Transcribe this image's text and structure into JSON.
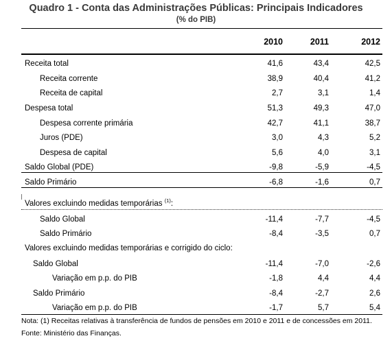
{
  "title": "Quadro 1 - Conta das Administrações Públicas: Principais Indicadores",
  "subtitle": "(% do PIB)",
  "columns": [
    "2010",
    "2011",
    "2012"
  ],
  "rows": [
    {
      "label": "Receita total",
      "values": [
        "41,6",
        "43,4",
        "42,5"
      ]
    },
    {
      "label": "Receita corrente",
      "values": [
        "38,9",
        "40,4",
        "41,2"
      ]
    },
    {
      "label": "Receita de capital",
      "values": [
        "2,7",
        "3,1",
        "1,4"
      ]
    },
    {
      "label": "Despesa total",
      "values": [
        "51,3",
        "49,3",
        "47,0"
      ]
    },
    {
      "label": "Despesa corrente primária",
      "values": [
        "42,7",
        "41,1",
        "38,7"
      ]
    },
    {
      "label": "Juros (PDE)",
      "values": [
        "3,0",
        "4,3",
        "5,2"
      ]
    },
    {
      "label": "Despesa de capital",
      "values": [
        "5,6",
        "4,0",
        "3,1"
      ]
    },
    {
      "label": "Saldo Global (PDE)",
      "values": [
        "-9,8",
        "-5,9",
        "-4,5"
      ]
    },
    {
      "label": "Saldo Primário",
      "values": [
        "-6,8",
        "-1,6",
        "0,7"
      ]
    },
    {
      "label": "Valores excluindo medidas temporárias",
      "sup": "(1)",
      "suffix": ":",
      "values": []
    },
    {
      "label": "Saldo Global",
      "values": [
        "-11,4",
        "-7,7",
        "-4,5"
      ]
    },
    {
      "label": "Saldo Primário",
      "values": [
        "-8,4",
        "-3,5",
        "0,7"
      ]
    },
    {
      "label": "Valores excluindo medidas temporárias e corrigido do ciclo:",
      "values": []
    },
    {
      "label": "Saldo Global",
      "values": [
        "-11,4",
        "-7,0",
        "-2,6"
      ]
    },
    {
      "label": "Variação em p.p. do PIB",
      "values": [
        "-1,8",
        "4,4",
        "4,4"
      ]
    },
    {
      "label": "Saldo Primário",
      "values": [
        "-8,4",
        "-2,7",
        "2,6"
      ]
    },
    {
      "label": "Variação em p.p. do PIB",
      "values": [
        "-1,7",
        "5,7",
        "5,4"
      ]
    }
  ],
  "notes": [
    "Nota: (1) Receitas relativas à transferência de fundos de pensões em 2010 e 2011 e de concessões em 2011.",
    "Fonte: Ministério das Finanças."
  ]
}
